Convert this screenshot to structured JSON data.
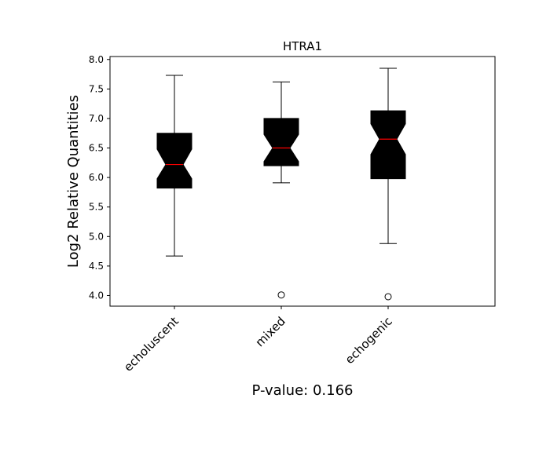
{
  "chart_data": {
    "type": "boxplot",
    "title": "HTRA1",
    "ylabel": "Log2 Relative Quantities",
    "xlabel": "P-value: 0.166",
    "categories": [
      "echoluscent",
      "mixed",
      "echogenic"
    ],
    "ylim": [
      3.82,
      8.05
    ],
    "yticks": [
      "4.0",
      "4.5",
      "5.0",
      "5.5",
      "6.0",
      "6.5",
      "7.0",
      "7.5",
      "8.0"
    ],
    "notched": true,
    "grid": false,
    "box_fill_color": "#000000",
    "median_color": "#ff0000",
    "boxes": [
      {
        "name": "echoluscent",
        "whisker_low": 4.67,
        "q1": 5.82,
        "median": 6.22,
        "q3": 6.75,
        "whisker_high": 7.73,
        "notch_low": 5.98,
        "notch_high": 6.48,
        "outliers": []
      },
      {
        "name": "mixed",
        "whisker_low": 5.91,
        "q1": 6.2,
        "median": 6.5,
        "q3": 7.0,
        "whisker_high": 7.62,
        "notch_low": 6.27,
        "notch_high": 6.73,
        "outliers": [
          4.01
        ]
      },
      {
        "name": "echogenic",
        "whisker_low": 4.88,
        "q1": 5.98,
        "median": 6.65,
        "q3": 7.13,
        "whisker_high": 7.85,
        "notch_low": 6.39,
        "notch_high": 6.91,
        "outliers": [
          3.98
        ]
      }
    ]
  }
}
